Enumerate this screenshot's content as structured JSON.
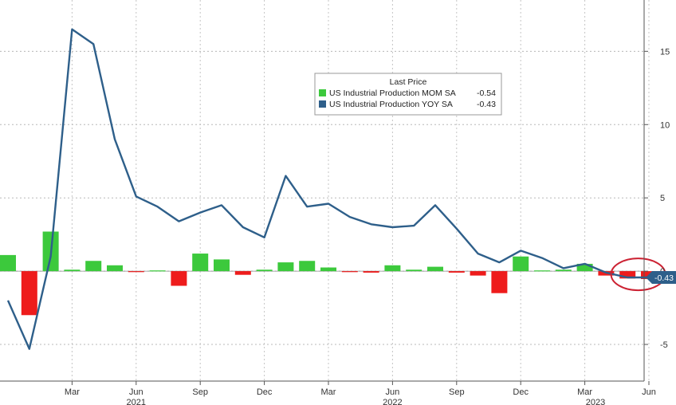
{
  "chart_data": {
    "type": "bar+line",
    "legend": {
      "title": "Last Price",
      "items": [
        {
          "label": "US Industrial Production MOM SA",
          "value": "-0.54",
          "color": "#3cc93c"
        },
        {
          "label": "US Industrial Production YOY SA",
          "value": "-0.43",
          "color": "#2e5f8a"
        }
      ]
    },
    "x": [
      "2020-12",
      "2021-01",
      "2021-02",
      "2021-03",
      "2021-04",
      "2021-05",
      "2021-06",
      "2021-07",
      "2021-08",
      "2021-09",
      "2021-10",
      "2021-11",
      "2021-12",
      "2022-01",
      "2022-02",
      "2022-03",
      "2022-04",
      "2022-05",
      "2022-06",
      "2022-07",
      "2022-08",
      "2022-09",
      "2022-10",
      "2022-11",
      "2022-12",
      "2023-01",
      "2023-02",
      "2023-03",
      "2023-04",
      "2023-05",
      "2023-06"
    ],
    "series": [
      {
        "name": "US Industrial Production MOM SA",
        "kind": "bar",
        "values": [
          1.1,
          -3.0,
          2.7,
          0.1,
          0.7,
          0.4,
          -0.05,
          0.05,
          -1.0,
          1.2,
          0.8,
          -0.25,
          0.1,
          0.6,
          0.7,
          0.25,
          -0.05,
          -0.1,
          0.4,
          0.1,
          0.3,
          -0.1,
          -0.3,
          -1.5,
          1.0,
          0.05,
          0.1,
          0.5,
          -0.3,
          -0.5,
          -0.54
        ],
        "up_color": "#3cc93c",
        "down_color": "#ee1c1c"
      },
      {
        "name": "US Industrial Production YOY SA",
        "kind": "line",
        "values": [
          -2.0,
          -5.3,
          1.0,
          16.5,
          15.5,
          9.0,
          5.1,
          4.4,
          3.4,
          4.0,
          4.5,
          3.0,
          2.3,
          6.5,
          4.4,
          4.6,
          3.7,
          3.2,
          3.0,
          3.1,
          4.5,
          2.9,
          1.2,
          0.6,
          1.4,
          0.9,
          0.2,
          0.5,
          -0.1,
          -0.43,
          -0.43
        ],
        "color": "#2e5f8a"
      }
    ],
    "ylim": [
      -7.5,
      18.5
    ],
    "yticks": [
      -5,
      0,
      5,
      10,
      15
    ],
    "ytick_labels": [
      "-5",
      "0",
      "5",
      "10",
      "15"
    ],
    "month_ticks": [
      {
        "index": 3,
        "label": "Mar"
      },
      {
        "index": 6,
        "label": "Jun"
      },
      {
        "index": 9,
        "label": "Sep"
      },
      {
        "index": 12,
        "label": "Dec"
      },
      {
        "index": 15,
        "label": "Mar"
      },
      {
        "index": 18,
        "label": "Jun"
      },
      {
        "index": 21,
        "label": "Sep"
      },
      {
        "index": 24,
        "label": "Dec"
      },
      {
        "index": 27,
        "label": "Mar"
      },
      {
        "index": 30,
        "label": "Jun"
      }
    ],
    "year_labels": [
      {
        "index": 6,
        "label": "2021"
      },
      {
        "index": 18,
        "label": "2022"
      },
      {
        "index": 27.5,
        "label": "2023"
      }
    ],
    "last_value_label": "-0.43",
    "last_value_color": "#2e5f8a",
    "highlight_color": "#cc2233",
    "grid": true,
    "y_axis_side": "right",
    "legend_position": "top-center"
  }
}
